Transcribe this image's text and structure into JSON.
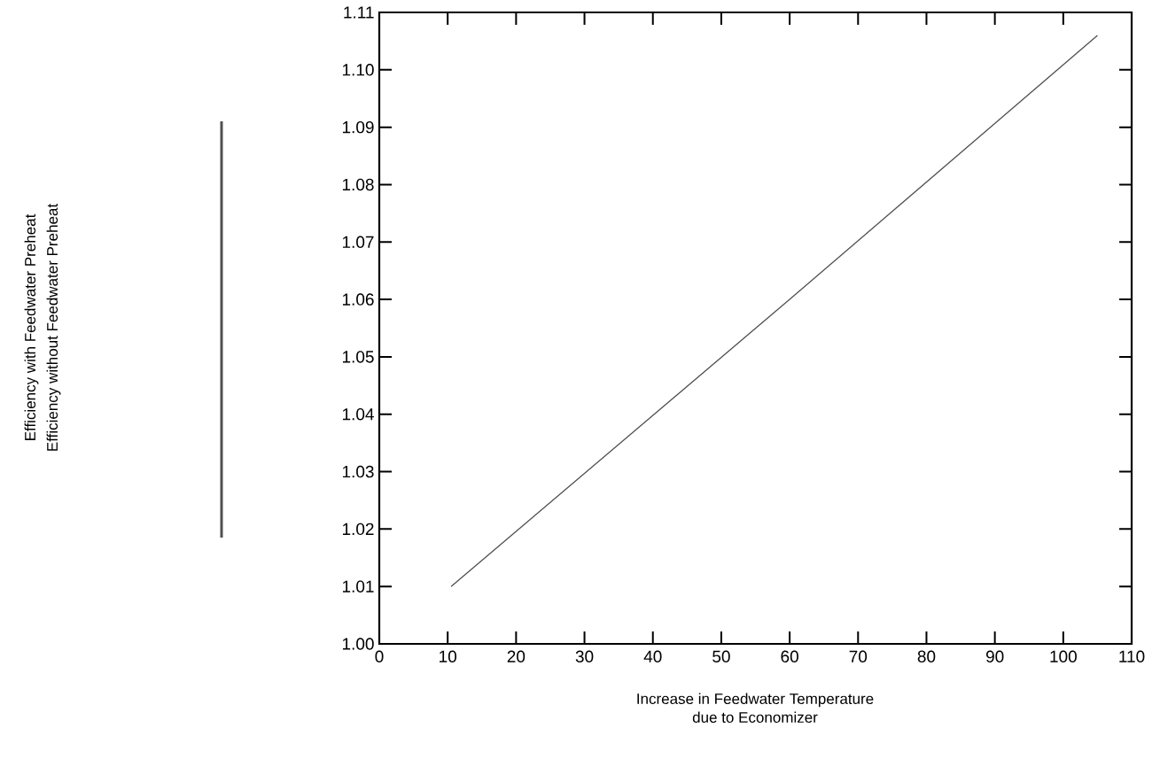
{
  "chart_data": {
    "type": "line",
    "xlabel": [
      "Increase in Feedwater Temperature",
      "due to Economizer"
    ],
    "ylabel": [
      "Efficiency with Feedwater Preheat",
      "Efficiency without Feedwater Preheat"
    ],
    "x": [
      10.5,
      60,
      105
    ],
    "values": [
      1.01,
      1.06,
      1.106
    ],
    "color": "#505050",
    "xlim": [
      0,
      110
    ],
    "xticks": [
      0,
      10,
      20,
      30,
      40,
      50,
      60,
      70,
      80,
      90,
      100,
      110
    ],
    "ylim": [
      1.0,
      1.11
    ],
    "yticks": [
      {
        "value": 1.0,
        "label": "1.00"
      },
      1.01,
      1.02,
      1.03,
      1.04,
      1.05,
      1.06,
      1.07,
      1.08,
      1.09,
      {
        "value": 1.1,
        "label": "1.10"
      },
      1.11
    ],
    "grid": false,
    "marker": "none",
    "line_style": "solid"
  }
}
